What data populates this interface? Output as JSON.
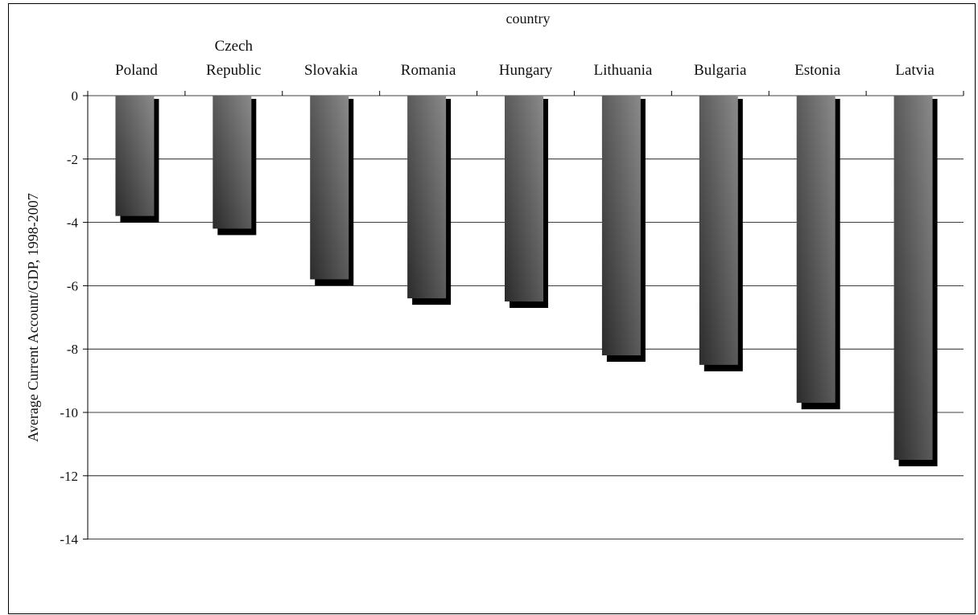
{
  "chart_data": {
    "type": "bar",
    "xlabel": "country",
    "ylabel": "Average Current Account/GDP, 1998-2007",
    "categories": [
      "Poland",
      "Czech Republic",
      "Slovakia",
      "Romania",
      "Hungary",
      "Lithuania",
      "Bulgaria",
      "Estonia",
      "Latvia"
    ],
    "category_label_lines": [
      [
        "Poland"
      ],
      [
        "Czech",
        "Republic"
      ],
      [
        "Slovakia"
      ],
      [
        "Romania"
      ],
      [
        "Hungary"
      ],
      [
        "Lithuania"
      ],
      [
        "Bulgaria"
      ],
      [
        "Estonia"
      ],
      [
        "Latvia"
      ]
    ],
    "values": [
      -3.9,
      -4.3,
      -5.9,
      -6.5,
      -6.6,
      -8.3,
      -8.6,
      -9.8,
      -11.6
    ],
    "ylim": [
      -14,
      0
    ],
    "yticks": [
      0,
      -2,
      -4,
      -6,
      -8,
      -10,
      -12,
      -14
    ],
    "grid": true,
    "x_axis_position": "top",
    "legend": "none",
    "colors": {
      "bar_dark": "#2b2b2b",
      "bar_light": "#8a8a8a",
      "shadow": "#000000",
      "grid": "#000000"
    }
  }
}
